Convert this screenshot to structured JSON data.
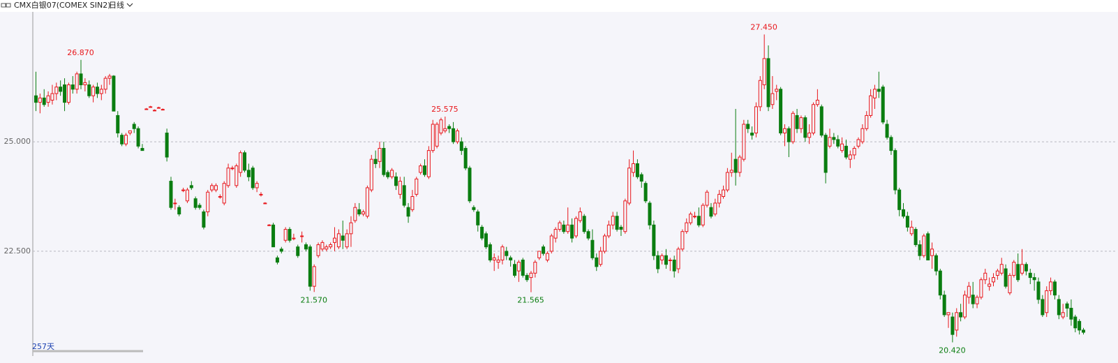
{
  "header": {
    "symbol": "CMX白银07(COMEX SIN2)",
    "period": "日线"
  },
  "chart_data": {
    "type": "candlestick",
    "days_label": "257天",
    "up_color": "#e8161b",
    "down_color": "#0a7d10",
    "grid": true,
    "ylim": [
      20.14,
      27.95
    ],
    "yticks": [
      {
        "value": 25,
        "label": "25.000"
      },
      {
        "value": 22.5,
        "label": "22.500"
      }
    ],
    "annotations": [
      {
        "value": 26.87,
        "label": "26.870"
      },
      {
        "value": 25.575,
        "label": "25.575"
      },
      {
        "value": 27.45,
        "label": "27.450"
      },
      {
        "value": 21.57,
        "label": "21.570"
      },
      {
        "value": 21.565,
        "label": "21.565"
      },
      {
        "value": 20.42,
        "label": "20.420"
      }
    ],
    "ohlc": [
      [
        26.05,
        26.6,
        25.7,
        25.9
      ],
      [
        25.9,
        26.1,
        25.65,
        26.0
      ],
      [
        26.0,
        26.2,
        25.8,
        25.85
      ],
      [
        25.9,
        26.15,
        25.8,
        26.05
      ],
      [
        25.95,
        26.3,
        25.85,
        26.1
      ],
      [
        26.1,
        26.35,
        25.95,
        26.25
      ],
      [
        26.25,
        26.4,
        26.05,
        26.15
      ],
      [
        26.3,
        26.45,
        25.7,
        25.9
      ],
      [
        25.9,
        26.35,
        25.85,
        26.3
      ],
      [
        26.3,
        26.5,
        26.1,
        26.2
      ],
      [
        26.2,
        26.6,
        26.1,
        26.55
      ],
      [
        26.55,
        26.87,
        26.2,
        26.3
      ],
      [
        26.3,
        26.45,
        26.15,
        26.35
      ],
      [
        26.3,
        26.4,
        26.0,
        26.05
      ],
      [
        26.05,
        26.3,
        25.9,
        26.25
      ],
      [
        26.25,
        26.35,
        26.0,
        26.1
      ],
      [
        26.1,
        26.3,
        25.95,
        26.2
      ],
      [
        26.2,
        26.5,
        26.1,
        26.45
      ],
      [
        26.45,
        26.55,
        26.3,
        26.5
      ],
      [
        26.5,
        26.52,
        25.7,
        25.7
      ],
      [
        25.6,
        25.7,
        25.1,
        25.2
      ],
      [
        25.15,
        25.2,
        24.9,
        24.95
      ],
      [
        24.95,
        25.2,
        24.9,
        25.15
      ],
      [
        25.2,
        25.25,
        25.15,
        25.25
      ],
      [
        25.4,
        25.45,
        25.2,
        25.3
      ],
      [
        25.3,
        25.35,
        24.85,
        24.9
      ],
      [
        24.85,
        24.95,
        24.8,
        24.8
      ],
      [
        25.75,
        25.77,
        25.73,
        25.75
      ],
      [
        25.8,
        25.82,
        25.78,
        25.8
      ],
      [
        25.72,
        25.74,
        25.7,
        25.72
      ],
      [
        25.78,
        25.8,
        25.76,
        25.78
      ],
      [
        25.74,
        25.76,
        25.72,
        25.74
      ],
      [
        25.2,
        25.3,
        24.55,
        24.65
      ],
      [
        24.1,
        24.2,
        23.45,
        23.5
      ],
      [
        23.6,
        23.7,
        23.45,
        23.6
      ],
      [
        23.5,
        23.55,
        23.3,
        23.35
      ],
      [
        23.9,
        23.95,
        23.85,
        23.9
      ],
      [
        23.65,
        23.95,
        23.6,
        23.9
      ],
      [
        24.0,
        24.1,
        23.9,
        23.95
      ],
      [
        23.7,
        23.75,
        23.45,
        23.5
      ],
      [
        23.55,
        23.6,
        23.45,
        23.5
      ],
      [
        23.4,
        23.45,
        23.0,
        23.05
      ],
      [
        23.4,
        23.9,
        23.3,
        23.85
      ],
      [
        23.9,
        24.05,
        23.85,
        24.0
      ],
      [
        23.9,
        24.05,
        23.85,
        24.0
      ],
      [
        23.75,
        23.8,
        23.7,
        23.75
      ],
      [
        23.6,
        24.1,
        23.55,
        24.05
      ],
      [
        24.0,
        24.5,
        23.95,
        24.4
      ],
      [
        24.4,
        24.45,
        24.35,
        24.4
      ],
      [
        24.0,
        24.5,
        23.95,
        24.45
      ],
      [
        24.3,
        24.8,
        24.2,
        24.75
      ],
      [
        24.75,
        24.8,
        24.3,
        24.35
      ],
      [
        24.35,
        24.5,
        24.1,
        24.2
      ],
      [
        24.4,
        24.45,
        23.9,
        23.95
      ],
      [
        23.95,
        24.1,
        23.85,
        24.05
      ],
      [
        23.8,
        23.85,
        23.75,
        23.8
      ],
      [
        23.6,
        23.62,
        23.58,
        23.6
      ],
      [
        23.1,
        23.12,
        23.08,
        23.1
      ],
      [
        23.1,
        23.15,
        22.6,
        22.6
      ],
      [
        22.35,
        22.4,
        22.2,
        22.25
      ],
      [
        22.55,
        22.6,
        22.45,
        22.5
      ],
      [
        22.75,
        23.05,
        22.7,
        23.0
      ],
      [
        23.0,
        23.05,
        22.7,
        22.75
      ],
      [
        22.8,
        22.9,
        22.75,
        22.8
      ],
      [
        22.6,
        22.65,
        22.35,
        22.4
      ],
      [
        22.85,
        22.95,
        22.7,
        22.85
      ],
      [
        22.65,
        22.7,
        22.5,
        22.55
      ],
      [
        22.6,
        22.65,
        21.6,
        21.7
      ],
      [
        21.7,
        22.2,
        21.57,
        22.15
      ],
      [
        22.4,
        22.7,
        22.35,
        22.65
      ],
      [
        22.55,
        22.75,
        22.5,
        22.7
      ],
      [
        22.55,
        22.65,
        22.5,
        22.6
      ],
      [
        22.6,
        22.7,
        22.55,
        22.65
      ],
      [
        22.7,
        23.05,
        22.5,
        22.8
      ],
      [
        22.6,
        23.0,
        22.55,
        22.9
      ],
      [
        22.85,
        23.2,
        22.55,
        22.75
      ],
      [
        22.6,
        23.0,
        22.55,
        22.9
      ],
      [
        22.9,
        23.3,
        22.6,
        23.15
      ],
      [
        23.2,
        23.6,
        23.15,
        23.5
      ],
      [
        23.45,
        23.6,
        23.3,
        23.35
      ],
      [
        23.35,
        23.45,
        23.3,
        23.4
      ],
      [
        23.3,
        24.0,
        23.25,
        23.95
      ],
      [
        23.9,
        24.7,
        23.85,
        24.6
      ],
      [
        24.6,
        24.8,
        24.4,
        24.5
      ],
      [
        24.55,
        25.0,
        24.4,
        24.85
      ],
      [
        24.85,
        25.0,
        24.2,
        24.25
      ],
      [
        24.3,
        24.35,
        24.15,
        24.2
      ],
      [
        24.2,
        24.4,
        24.15,
        24.35
      ],
      [
        24.2,
        24.3,
        23.9,
        24.0
      ],
      [
        23.8,
        24.2,
        23.7,
        24.1
      ],
      [
        24.0,
        24.2,
        23.5,
        23.55
      ],
      [
        23.5,
        23.6,
        23.15,
        23.3
      ],
      [
        23.45,
        23.9,
        23.4,
        23.75
      ],
      [
        23.8,
        24.2,
        23.75,
        24.15
      ],
      [
        24.3,
        24.5,
        24.25,
        24.45
      ],
      [
        24.45,
        24.6,
        24.2,
        24.25
      ],
      [
        24.2,
        24.9,
        24.15,
        24.8
      ],
      [
        24.8,
        25.5,
        24.75,
        25.4
      ],
      [
        24.9,
        25.45,
        24.85,
        25.4
      ],
      [
        25.2,
        25.55,
        25.15,
        25.5
      ],
      [
        25.25,
        25.575,
        25.2,
        25.3
      ],
      [
        25.35,
        25.4,
        25.2,
        25.3
      ],
      [
        25.3,
        25.45,
        24.95,
        25.0
      ],
      [
        25.0,
        25.3,
        24.95,
        25.25
      ],
      [
        25.0,
        25.1,
        24.7,
        24.8
      ],
      [
        24.85,
        24.9,
        24.35,
        24.4
      ],
      [
        24.4,
        24.45,
        23.6,
        23.65
      ],
      [
        23.5,
        23.55,
        23.4,
        23.45
      ],
      [
        23.4,
        23.45,
        22.95,
        23.1
      ],
      [
        23.05,
        23.1,
        22.75,
        22.8
      ],
      [
        22.9,
        22.95,
        22.55,
        22.6
      ],
      [
        22.65,
        22.7,
        22.25,
        22.3
      ],
      [
        22.3,
        22.45,
        22.05,
        22.35
      ],
      [
        22.25,
        22.4,
        22.1,
        22.3
      ],
      [
        22.3,
        22.65,
        22.2,
        22.6
      ],
      [
        22.5,
        22.6,
        22.3,
        22.4
      ],
      [
        22.35,
        22.4,
        22.15,
        22.3
      ],
      [
        22.2,
        22.3,
        21.9,
        21.95
      ],
      [
        22.05,
        22.3,
        21.8,
        22.25
      ],
      [
        22.3,
        22.35,
        21.9,
        21.95
      ],
      [
        21.95,
        22.0,
        21.8,
        21.85
      ],
      [
        21.9,
        22.05,
        21.565,
        22.0
      ],
      [
        22.0,
        22.3,
        21.9,
        22.25
      ],
      [
        22.35,
        22.5,
        22.3,
        22.5
      ],
      [
        22.6,
        22.65,
        22.4,
        22.45
      ],
      [
        22.3,
        22.5,
        22.25,
        22.45
      ],
      [
        22.5,
        22.9,
        22.45,
        22.85
      ],
      [
        22.8,
        23.05,
        22.7,
        23.0
      ],
      [
        23.0,
        23.2,
        22.95,
        23.15
      ],
      [
        23.1,
        23.2,
        22.9,
        22.95
      ],
      [
        22.95,
        23.5,
        22.9,
        23.1
      ],
      [
        23.1,
        23.25,
        22.7,
        22.8
      ],
      [
        22.85,
        23.3,
        22.8,
        23.25
      ],
      [
        23.2,
        23.5,
        23.15,
        23.4
      ],
      [
        23.3,
        23.35,
        22.9,
        22.95
      ],
      [
        22.95,
        23.0,
        22.75,
        22.8
      ],
      [
        22.75,
        23.0,
        22.3,
        22.35
      ],
      [
        22.35,
        22.45,
        22.05,
        22.15
      ],
      [
        22.2,
        22.6,
        22.15,
        22.5
      ],
      [
        22.5,
        22.9,
        22.45,
        22.85
      ],
      [
        22.85,
        23.2,
        22.8,
        23.1
      ],
      [
        23.1,
        23.4,
        23.0,
        23.3
      ],
      [
        23.3,
        23.4,
        22.95,
        23.0
      ],
      [
        23.05,
        23.1,
        22.85,
        23.0
      ],
      [
        22.95,
        23.7,
        22.9,
        23.65
      ],
      [
        23.6,
        24.6,
        23.55,
        24.4
      ],
      [
        24.3,
        24.8,
        24.2,
        24.5
      ],
      [
        24.5,
        24.6,
        24.15,
        24.2
      ],
      [
        24.25,
        24.3,
        23.95,
        24.1
      ],
      [
        24.05,
        24.1,
        23.6,
        23.65
      ],
      [
        23.6,
        23.65,
        23.0,
        23.1
      ],
      [
        23.1,
        23.2,
        22.3,
        22.4
      ],
      [
        22.4,
        22.5,
        22.0,
        22.1
      ],
      [
        22.3,
        22.45,
        22.2,
        22.4
      ],
      [
        22.4,
        22.55,
        22.1,
        22.2
      ],
      [
        22.3,
        22.35,
        22.05,
        22.3
      ],
      [
        22.3,
        22.4,
        21.9,
        22.05
      ],
      [
        22.1,
        22.6,
        22.0,
        22.55
      ],
      [
        22.55,
        23.0,
        22.5,
        22.95
      ],
      [
        22.95,
        23.25,
        22.9,
        23.15
      ],
      [
        23.15,
        23.4,
        23.1,
        23.35
      ],
      [
        23.3,
        23.4,
        23.25,
        23.3
      ],
      [
        23.3,
        23.5,
        23.05,
        23.1
      ],
      [
        23.1,
        23.6,
        23.05,
        23.55
      ],
      [
        23.55,
        23.9,
        23.5,
        23.85
      ],
      [
        23.5,
        23.6,
        23.25,
        23.3
      ],
      [
        23.35,
        23.7,
        23.3,
        23.6
      ],
      [
        23.6,
        23.9,
        23.5,
        23.8
      ],
      [
        23.75,
        24.0,
        23.7,
        23.9
      ],
      [
        23.9,
        24.4,
        23.85,
        24.3
      ],
      [
        24.3,
        24.75,
        24.2,
        24.35
      ],
      [
        24.6,
        25.75,
        24.0,
        24.3
      ],
      [
        24.3,
        24.7,
        24.2,
        24.65
      ],
      [
        24.6,
        25.5,
        24.55,
        25.4
      ],
      [
        25.4,
        25.5,
        25.2,
        25.3
      ],
      [
        25.2,
        25.35,
        25.05,
        25.15
      ],
      [
        25.2,
        25.9,
        25.1,
        25.8
      ],
      [
        25.8,
        26.5,
        25.7,
        26.4
      ],
      [
        26.3,
        27.45,
        26.2,
        26.9
      ],
      [
        26.9,
        27.2,
        25.7,
        25.8
      ],
      [
        25.85,
        26.5,
        25.75,
        26.1
      ],
      [
        26.15,
        26.3,
        25.95,
        26.2
      ],
      [
        26.2,
        26.25,
        25.15,
        25.2
      ],
      [
        25.2,
        25.4,
        24.9,
        25.3
      ],
      [
        25.3,
        25.35,
        24.65,
        25.0
      ],
      [
        25.0,
        25.7,
        24.95,
        25.65
      ],
      [
        25.6,
        25.75,
        25.2,
        25.3
      ],
      [
        25.3,
        25.6,
        25.2,
        25.55
      ],
      [
        25.55,
        25.6,
        25.0,
        25.1
      ],
      [
        25.1,
        25.4,
        24.95,
        25.2
      ],
      [
        25.2,
        25.9,
        25.15,
        25.85
      ],
      [
        25.85,
        26.2,
        25.8,
        25.95
      ],
      [
        25.8,
        25.85,
        25.1,
        25.15
      ],
      [
        25.15,
        25.2,
        24.05,
        24.3
      ],
      [
        24.9,
        25.3,
        24.85,
        25.1
      ],
      [
        25.1,
        25.2,
        24.95,
        25.05
      ],
      [
        25.05,
        25.15,
        24.85,
        24.9
      ],
      [
        24.8,
        25.1,
        24.75,
        24.95
      ],
      [
        24.9,
        25.05,
        24.6,
        24.65
      ],
      [
        24.6,
        24.8,
        24.4,
        24.7
      ],
      [
        24.7,
        24.9,
        24.6,
        24.85
      ],
      [
        24.9,
        25.1,
        24.85,
        25.05
      ],
      [
        25.0,
        25.4,
        24.95,
        25.3
      ],
      [
        25.3,
        25.7,
        25.25,
        25.6
      ],
      [
        25.6,
        26.2,
        25.55,
        26.05
      ],
      [
        26.0,
        26.3,
        25.75,
        26.2
      ],
      [
        26.2,
        26.6,
        26.0,
        26.15
      ],
      [
        26.25,
        26.3,
        25.4,
        25.45
      ],
      [
        25.4,
        25.5,
        25.05,
        25.1
      ],
      [
        25.1,
        25.15,
        24.7,
        24.8
      ],
      [
        24.8,
        24.85,
        23.8,
        23.9
      ],
      [
        23.9,
        23.95,
        23.3,
        23.45
      ],
      [
        23.45,
        23.6,
        23.25,
        23.3
      ],
      [
        23.3,
        23.4,
        22.95,
        23.05
      ],
      [
        22.9,
        23.2,
        22.85,
        23.05
      ],
      [
        23.0,
        23.05,
        22.6,
        22.65
      ],
      [
        22.65,
        22.75,
        22.3,
        22.4
      ],
      [
        22.4,
        22.9,
        22.35,
        22.85
      ],
      [
        22.9,
        22.95,
        22.3,
        22.3
      ],
      [
        22.4,
        22.7,
        22.1,
        22.55
      ],
      [
        22.4,
        22.45,
        21.95,
        22.05
      ],
      [
        22.05,
        22.1,
        21.4,
        21.5
      ],
      [
        21.5,
        21.6,
        21.0,
        21.05
      ],
      [
        21.05,
        21.1,
        20.75,
        21.1
      ],
      [
        21.0,
        21.1,
        20.42,
        20.6
      ],
      [
        20.7,
        21.2,
        20.55,
        21.1
      ],
      [
        21.1,
        21.3,
        20.9,
        21.0
      ],
      [
        21.0,
        21.6,
        20.95,
        21.5
      ],
      [
        21.45,
        21.8,
        21.3,
        21.7
      ],
      [
        21.5,
        21.8,
        21.2,
        21.3
      ],
      [
        21.3,
        21.5,
        21.2,
        21.45
      ],
      [
        21.45,
        21.9,
        21.4,
        21.85
      ],
      [
        21.85,
        22.1,
        21.75,
        22.0
      ],
      [
        21.7,
        21.9,
        21.6,
        21.75
      ],
      [
        21.8,
        22.0,
        21.7,
        21.9
      ],
      [
        21.95,
        22.1,
        21.85,
        22.05
      ],
      [
        22.0,
        22.35,
        21.95,
        22.2
      ],
      [
        22.1,
        22.2,
        21.65,
        21.7
      ],
      [
        21.55,
        22.0,
        21.5,
        21.95
      ],
      [
        21.95,
        22.3,
        21.9,
        22.25
      ],
      [
        22.2,
        22.45,
        21.8,
        21.85
      ],
      [
        22.0,
        22.55,
        21.95,
        22.2
      ],
      [
        22.2,
        22.25,
        21.95,
        22.05
      ],
      [
        22.0,
        22.1,
        21.75,
        21.9
      ],
      [
        21.9,
        22.0,
        21.6,
        21.85
      ],
      [
        21.8,
        21.9,
        21.3,
        21.4
      ],
      [
        21.4,
        21.5,
        21.0,
        21.05
      ],
      [
        21.1,
        21.7,
        21.0,
        21.6
      ],
      [
        21.6,
        21.9,
        21.5,
        21.8
      ],
      [
        21.8,
        21.85,
        21.4,
        21.5
      ],
      [
        21.4,
        21.5,
        20.95,
        21.05
      ],
      [
        21.0,
        21.3,
        20.95,
        21.1
      ],
      [
        21.3,
        21.35,
        21.0,
        21.2
      ],
      [
        21.2,
        21.4,
        20.8,
        20.95
      ],
      [
        21.0,
        21.05,
        20.65,
        20.75
      ],
      [
        20.9,
        20.95,
        20.6,
        20.7
      ],
      [
        20.7,
        20.75,
        20.6,
        20.65
      ]
    ]
  }
}
